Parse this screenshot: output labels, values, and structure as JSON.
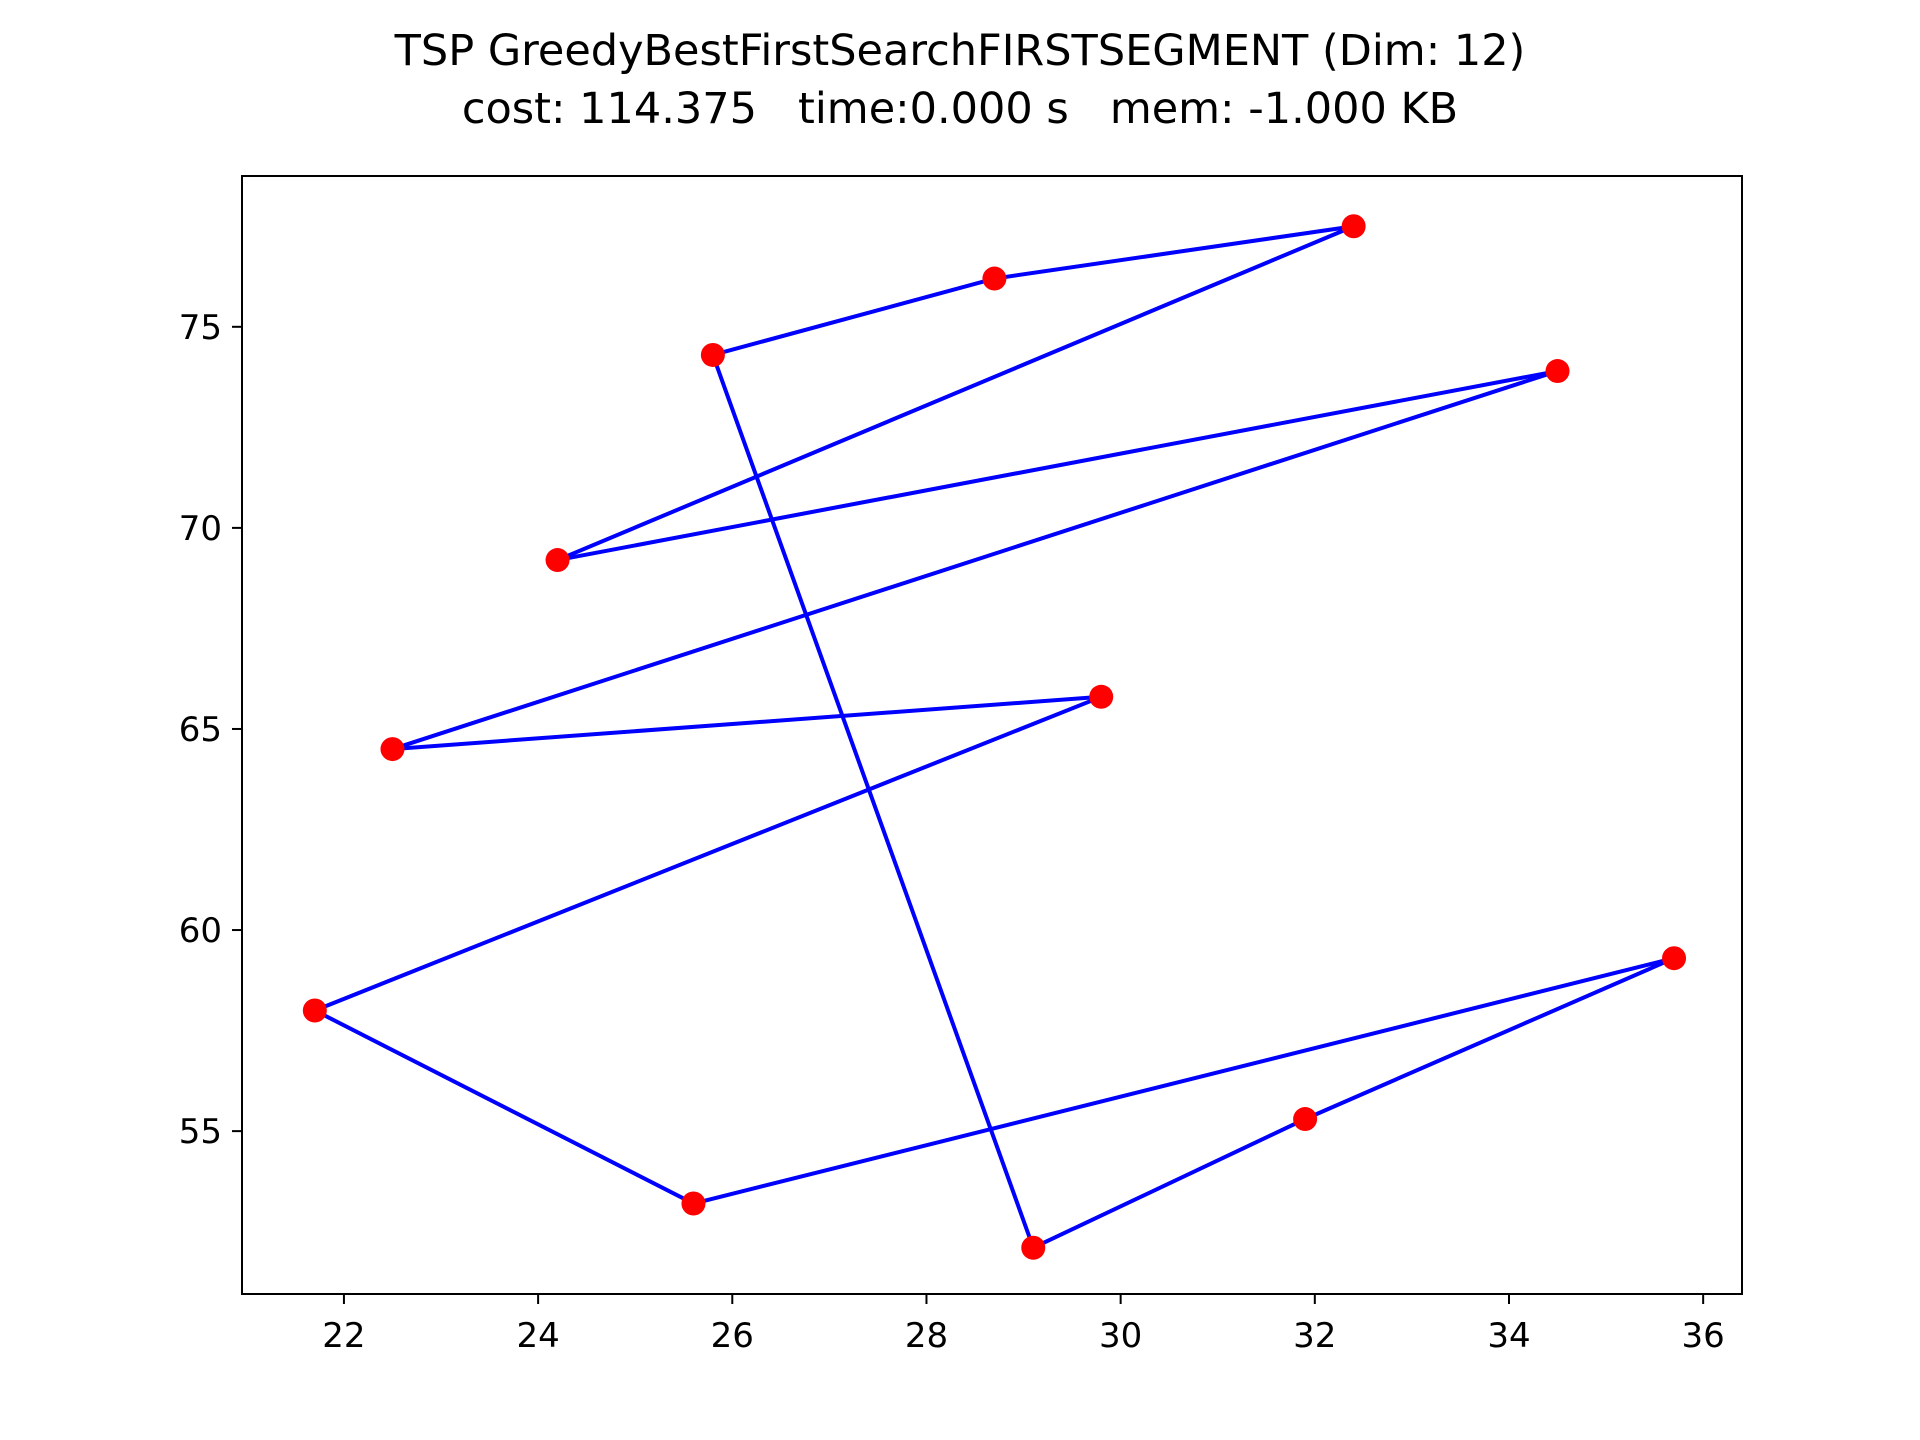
{
  "chart_data": {
    "type": "line",
    "title": "TSP GreedyBestFirstSearchFIRSTSEGMENT (Dim: 12)",
    "subtitle": "cost: 114.375   time:0.000 s   mem: -1.000 KB",
    "xlabel": "",
    "ylabel": "",
    "xlim": [
      20.95,
      36.4
    ],
    "ylim": [
      50.95,
      78.75
    ],
    "xticks": [
      22,
      24,
      26,
      28,
      30,
      32,
      34,
      36
    ],
    "yticks": [
      55,
      60,
      65,
      70,
      75
    ],
    "grid": false,
    "line_color": "#0000ff",
    "marker_color": "#ff0000",
    "tour": [
      {
        "x": 29.1,
        "y": 52.1
      },
      {
        "x": 25.8,
        "y": 74.3
      },
      {
        "x": 28.7,
        "y": 76.2
      },
      {
        "x": 32.4,
        "y": 77.5
      },
      {
        "x": 24.2,
        "y": 69.2
      },
      {
        "x": 34.5,
        "y": 73.9
      },
      {
        "x": 22.5,
        "y": 64.5
      },
      {
        "x": 29.8,
        "y": 65.8
      },
      {
        "x": 21.7,
        "y": 58.0
      },
      {
        "x": 25.6,
        "y": 53.2
      },
      {
        "x": 35.7,
        "y": 59.3
      },
      {
        "x": 31.9,
        "y": 55.3
      },
      {
        "x": 29.1,
        "y": 52.1
      }
    ]
  }
}
